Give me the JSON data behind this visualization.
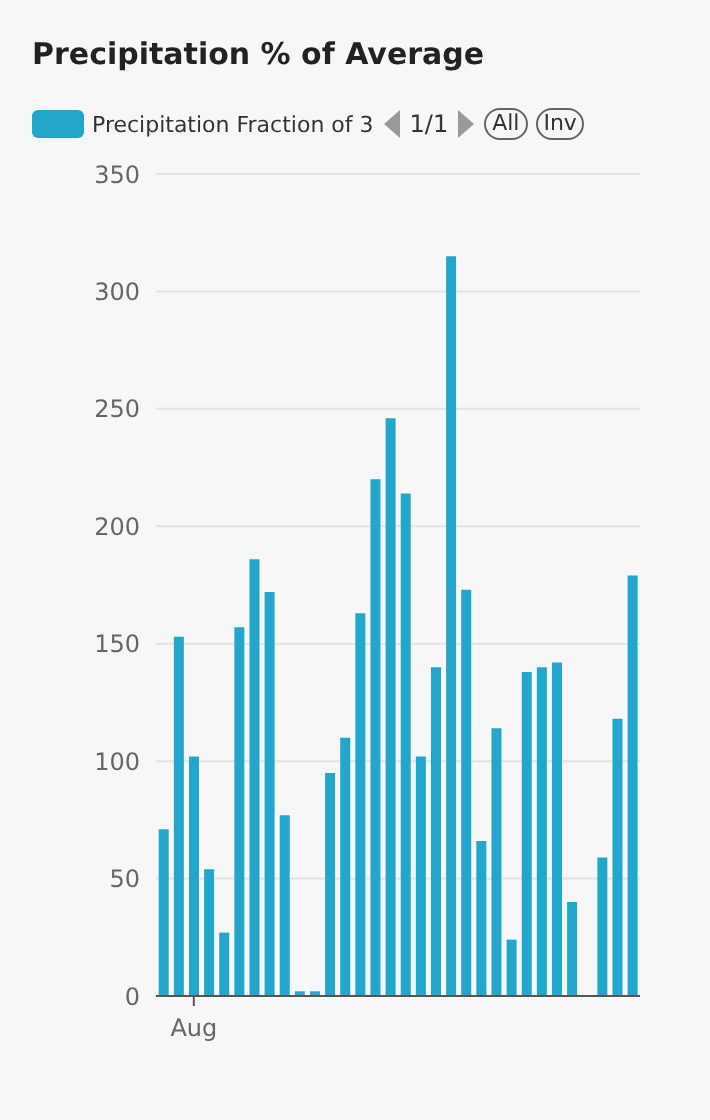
{
  "chart_data": {
    "type": "bar",
    "title": "Precipitation % of Average",
    "categories": [
      null,
      null,
      "Aug",
      null,
      null,
      null,
      null,
      null,
      null,
      null,
      null,
      null,
      null,
      null,
      null,
      null,
      null,
      null,
      null,
      null,
      null,
      null,
      null,
      null,
      null,
      null,
      null,
      null,
      null,
      null,
      null,
      null
    ],
    "series": [
      {
        "name": "Precipitation Fraction of 3",
        "color": "#23a6cb",
        "values": [
          71,
          153,
          102,
          54,
          27,
          157,
          186,
          172,
          77,
          2,
          2,
          95,
          110,
          163,
          220,
          246,
          214,
          102,
          140,
          315,
          173,
          66,
          114,
          24,
          138,
          140,
          142,
          40,
          null,
          59,
          118,
          179
        ]
      }
    ],
    "ylim": [
      0,
      350
    ],
    "yticks": [
      0,
      50,
      100,
      150,
      200,
      250,
      300,
      350
    ],
    "grid": "y",
    "legend": "top left",
    "annotations": [
      "1/1",
      "All",
      "Inv"
    ]
  }
}
